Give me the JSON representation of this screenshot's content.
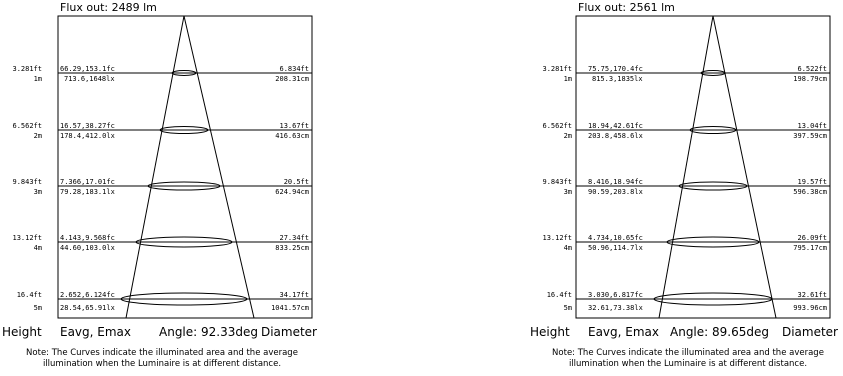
{
  "diagrams": [
    {
      "flux": "Flux out: 2489 lm",
      "rows": [
        {
          "h_ft": "3.281ft",
          "h_m": "1m",
          "e_fc": "66.29,153.1fc",
          "e_lx": "713.6,1648lx",
          "d_ft": "6.834ft",
          "d_cm": "208.31cm"
        },
        {
          "h_ft": "6.562ft",
          "h_m": "2m",
          "e_fc": "16.57,38.27fc",
          "e_lx": "178.4,412.0lx",
          "d_ft": "13.67ft",
          "d_cm": "416.63cm"
        },
        {
          "h_ft": "9.843ft",
          "h_m": "3m",
          "e_fc": "7.366,17.01fc",
          "e_lx": "79.28,183.1lx",
          "d_ft": "20.5ft",
          "d_cm": "624.94cm"
        },
        {
          "h_ft": "13.12ft",
          "h_m": "4m",
          "e_fc": "4.143,9.568fc",
          "e_lx": "44.60,103.0lx",
          "d_ft": "27.34ft",
          "d_cm": "833.25cm"
        },
        {
          "h_ft": "16.4ft",
          "h_m": "5m",
          "e_fc": "2.652,6.124fc",
          "e_lx": "28.54,65.91lx",
          "d_ft": "34.17ft",
          "d_cm": "1041.57cm"
        }
      ],
      "footer": {
        "height": "Height",
        "eavg": "Eavg, Emax",
        "angle": "Angle: 92.33deg",
        "diameter": "Diameter"
      },
      "note1": "Note: The Curves indicate the illuminated area and the average",
      "note2": "illumination when the Luminaire is at different distance."
    },
    {
      "flux": "Flux out: 2561 lm",
      "rows": [
        {
          "h_ft": "3.281ft",
          "h_m": "1m",
          "e_fc": "75.75,170.4fc",
          "e_lx": "815.3,1835lx",
          "d_ft": "6.522ft",
          "d_cm": "198.79cm"
        },
        {
          "h_ft": "6.562ft",
          "h_m": "2m",
          "e_fc": "18.94,42.61fc",
          "e_lx": "203.8,458.6lx",
          "d_ft": "13.04ft",
          "d_cm": "397.59cm"
        },
        {
          "h_ft": "9.843ft",
          "h_m": "3m",
          "e_fc": "8.416,18.94fc",
          "e_lx": "90.59,203.8lx",
          "d_ft": "19.57ft",
          "d_cm": "596.38cm"
        },
        {
          "h_ft": "13.12ft",
          "h_m": "4m",
          "e_fc": "4.734,10.65fc",
          "e_lx": "50.96,114.7lx",
          "d_ft": "26.09ft",
          "d_cm": "795.17cm"
        },
        {
          "h_ft": "16.4ft",
          "h_m": "5m",
          "e_fc": "3.030,6.817fc",
          "e_lx": "32.61,73.38lx",
          "d_ft": "32.61ft",
          "d_cm": "993.96cm"
        }
      ],
      "footer": {
        "height": "Height",
        "eavg": "Eavg, Emax",
        "angle": "Angle: 89.65deg",
        "diameter": "Diameter"
      },
      "note1": "Note: The Curves indicate the illuminated area and the average",
      "note2": "illumination when the Luminaire is at different distance."
    }
  ]
}
